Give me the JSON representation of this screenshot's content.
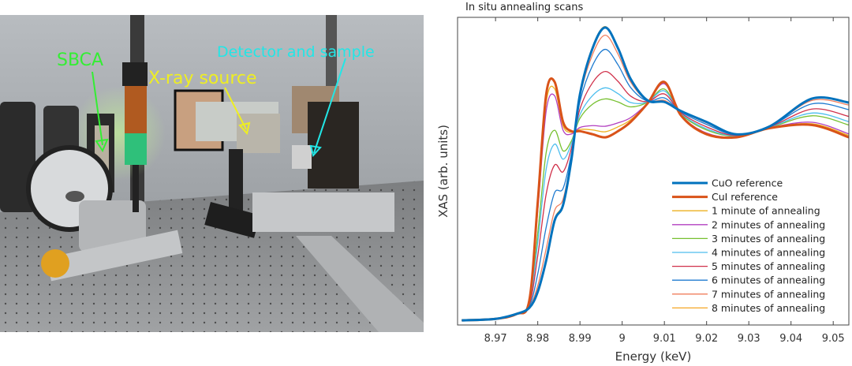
{
  "photo": {
    "labels": {
      "sbca": "SBCA",
      "xray_source": "X-ray source",
      "detector_sample": "Detector and sample"
    },
    "label_colors": {
      "sbca": "#33ee33",
      "xray_source": "#eeee22",
      "detector_sample": "#22e6e6"
    }
  },
  "chart_data": {
    "type": "line",
    "title": "In situ annealing scans",
    "xlabel": "Energy (keV)",
    "ylabel": "XAS (arb. units)",
    "xlim": [
      8.961,
      9.0537
    ],
    "ylim": [
      0,
      1
    ],
    "xticks": [
      8.97,
      8.98,
      8.99,
      9,
      9.01,
      9.02,
      9.03,
      9.04,
      9.05
    ],
    "xtick_labels": [
      "8.97",
      "8.98",
      "8.99",
      "9",
      "9.01",
      "9.02",
      "9.03",
      "9.04",
      "9.05"
    ],
    "grid": false,
    "legend_position": "bottom-right",
    "x": [
      8.962,
      8.97,
      8.975,
      8.978,
      8.98,
      8.982,
      8.984,
      8.986,
      8.988,
      8.99,
      8.993,
      8.996,
      8.999,
      9.002,
      9.006,
      9.01,
      9.014,
      9.02,
      9.027,
      9.035,
      9.045,
      9.0537
    ],
    "series": [
      {
        "name": "CuO reference",
        "color": "#0072BD",
        "width": 3,
        "values": [
          0.015,
          0.02,
          0.036,
          0.056,
          0.108,
          0.21,
          0.34,
          0.39,
          0.54,
          0.75,
          0.9,
          0.967,
          0.9,
          0.8,
          0.73,
          0.725,
          0.695,
          0.66,
          0.62,
          0.646,
          0.736,
          0.723
        ]
      },
      {
        "name": "CuI reference",
        "color": "#D95319",
        "width": 3,
        "values": [
          0.015,
          0.02,
          0.036,
          0.08,
          0.4,
          0.75,
          0.79,
          0.66,
          0.63,
          0.63,
          0.62,
          0.61,
          0.63,
          0.66,
          0.72,
          0.79,
          0.68,
          0.62,
          0.61,
          0.64,
          0.65,
          0.61
        ]
      },
      {
        "name": "1 minute of annealing",
        "color": "#EDB120",
        "width": 1.3,
        "values": [
          0.015,
          0.02,
          0.036,
          0.079,
          0.385,
          0.723,
          0.768,
          0.647,
          0.626,
          0.636,
          0.634,
          0.628,
          0.644,
          0.667,
          0.72,
          0.787,
          0.681,
          0.622,
          0.61,
          0.64,
          0.654,
          0.616
        ]
      },
      {
        "name": "2 minutes of annealing",
        "color": "#B23FC0",
        "width": 1.3,
        "values": [
          0.015,
          0.02,
          0.036,
          0.078,
          0.371,
          0.696,
          0.745,
          0.633,
          0.621,
          0.642,
          0.648,
          0.646,
          0.657,
          0.674,
          0.721,
          0.784,
          0.682,
          0.624,
          0.611,
          0.641,
          0.659,
          0.621
        ]
      },
      {
        "name": "3 minutes of annealing",
        "color": "#77C030",
        "width": 1.3,
        "values": [
          0.015,
          0.02,
          0.036,
          0.072,
          0.298,
          0.561,
          0.633,
          0.566,
          0.599,
          0.672,
          0.718,
          0.735,
          0.725,
          0.709,
          0.724,
          0.767,
          0.685,
          0.634,
          0.614,
          0.642,
          0.68,
          0.65
        ]
      },
      {
        "name": "4 minutes of annealing",
        "color": "#4DBEEE",
        "width": 1.3,
        "values": [
          0.015,
          0.02,
          0.036,
          0.069,
          0.269,
          0.507,
          0.588,
          0.539,
          0.59,
          0.684,
          0.746,
          0.771,
          0.752,
          0.723,
          0.725,
          0.761,
          0.687,
          0.638,
          0.615,
          0.643,
          0.689,
          0.661
        ]
      },
      {
        "name": "5 minutes of annealing",
        "color": "#D0304A",
        "width": 1.3,
        "values": [
          0.015,
          0.02,
          0.036,
          0.066,
          0.225,
          0.426,
          0.52,
          0.498,
          0.576,
          0.702,
          0.788,
          0.824,
          0.792,
          0.744,
          0.726,
          0.751,
          0.689,
          0.644,
          0.616,
          0.644,
          0.702,
          0.678
        ]
      },
      {
        "name": "6 minutes of annealing",
        "color": "#1F7BD0",
        "width": 1.3,
        "values": [
          0.015,
          0.02,
          0.036,
          0.061,
          0.166,
          0.318,
          0.43,
          0.444,
          0.558,
          0.726,
          0.844,
          0.896,
          0.846,
          0.772,
          0.728,
          0.738,
          0.692,
          0.652,
          0.618,
          0.645,
          0.719,
          0.7
        ]
      },
      {
        "name": "7 minutes of annealing",
        "color": "#F07F5E",
        "width": 1.3,
        "values": [
          0.015,
          0.02,
          0.036,
          0.058,
          0.128,
          0.248,
          0.372,
          0.409,
          0.546,
          0.742,
          0.88,
          0.942,
          0.881,
          0.79,
          0.729,
          0.73,
          0.694,
          0.657,
          0.619,
          0.646,
          0.73,
          0.715
        ]
      },
      {
        "name": "8 minutes of annealing",
        "color": "#F5A623",
        "width": 1.3,
        "values": [
          0.015,
          0.02,
          0.036,
          0.056,
          0.11,
          0.215,
          0.345,
          0.395,
          0.545,
          0.755,
          0.905,
          0.97,
          0.9,
          0.8,
          0.73,
          0.725,
          0.695,
          0.66,
          0.62,
          0.646,
          0.736,
          0.723
        ]
      }
    ]
  }
}
